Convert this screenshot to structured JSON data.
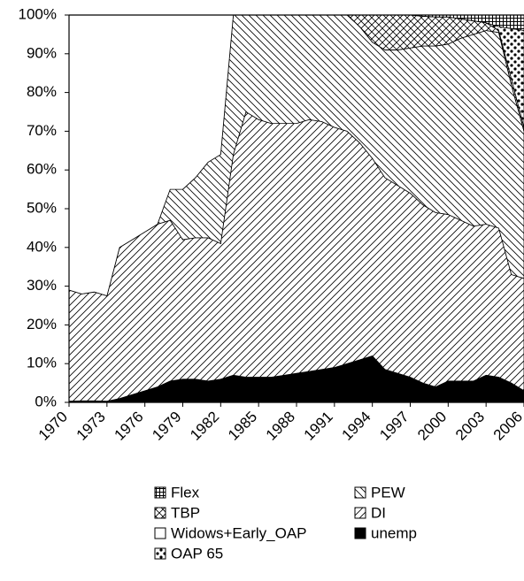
{
  "chart_data": {
    "type": "stacked_area",
    "x": [
      1970,
      1971,
      1972,
      1973,
      1974,
      1975,
      1976,
      1977,
      1978,
      1979,
      1980,
      1981,
      1982,
      1983,
      1984,
      1985,
      1986,
      1987,
      1988,
      1989,
      1990,
      1991,
      1992,
      1993,
      1994,
      1995,
      1996,
      1997,
      1998,
      1999,
      2000,
      2001,
      2002,
      2003,
      2004,
      2005,
      2006
    ],
    "xlim": [
      1970,
      2006
    ],
    "xticks": [
      1970,
      1973,
      1976,
      1979,
      1982,
      1985,
      1988,
      1991,
      1994,
      1997,
      2000,
      2003,
      2006
    ],
    "ylim": [
      0,
      100
    ],
    "yticks": [
      {
        "value": 0,
        "label": "0%"
      },
      {
        "value": 10,
        "label": "10%"
      },
      {
        "value": 20,
        "label": "20%"
      },
      {
        "value": 30,
        "label": "30%"
      },
      {
        "value": 40,
        "label": "40%"
      },
      {
        "value": 50,
        "label": "50%"
      },
      {
        "value": 60,
        "label": "60%"
      },
      {
        "value": 70,
        "label": "70%"
      },
      {
        "value": 80,
        "label": "80%"
      },
      {
        "value": 90,
        "label": "90%"
      },
      {
        "value": 100,
        "label": "100%"
      }
    ],
    "series": [
      {
        "name": "unemp",
        "color": "#000000",
        "hatch": "solid",
        "values": [
          0.3,
          0.4,
          0.4,
          0.3,
          1,
          2,
          3,
          4,
          5.5,
          6,
          6,
          5.5,
          6,
          7,
          6.5,
          6.5,
          6.5,
          7,
          7.5,
          8,
          8.5,
          9,
          10,
          11,
          12,
          8.5,
          7.5,
          6.5,
          5,
          4,
          5.5,
          5.5,
          5.5,
          7,
          6.5,
          5,
          3
        ]
      },
      {
        "name": "DI",
        "color": "#000000",
        "hatch": "slash",
        "values": [
          28.7,
          27.6,
          28.1,
          27.2,
          39,
          40,
          41,
          42,
          41.5,
          36,
          36.5,
          37,
          35,
          57,
          68.5,
          66.5,
          65.5,
          65,
          64.5,
          65,
          64,
          62,
          60,
          56,
          51,
          49.5,
          48.5,
          47.5,
          46,
          45,
          43,
          41.5,
          40,
          39,
          38.5,
          28,
          29
        ]
      },
      {
        "name": "PEW",
        "color": "#000000",
        "hatch": "backslash",
        "values": [
          0,
          0,
          0,
          0,
          0,
          0,
          0,
          0,
          8,
          13,
          15.5,
          19.5,
          23,
          36,
          25,
          27,
          28,
          28,
          28,
          27,
          27.5,
          29,
          30,
          30,
          30,
          33,
          35,
          37.5,
          41,
          43,
          44,
          47,
          49.5,
          50,
          50.5,
          49,
          38
        ]
      },
      {
        "name": "Widows+Early_OAP",
        "color": "#ffffff",
        "hatch": "solid",
        "values": [
          71,
          72,
          71.5,
          72.5,
          60,
          58,
          56,
          54,
          45,
          45,
          42,
          38,
          36,
          0,
          0,
          0,
          0,
          0,
          0,
          0,
          0,
          0,
          0,
          0,
          0,
          0,
          0,
          0,
          0,
          0,
          0,
          0,
          0,
          0,
          0,
          0,
          0
        ]
      },
      {
        "name": "TBP",
        "color": "#000000",
        "hatch": "cross",
        "values": [
          0,
          0,
          0,
          0,
          0,
          0,
          0,
          0,
          0,
          0,
          0,
          0,
          0,
          0,
          0,
          0,
          0,
          0,
          0,
          0,
          0,
          0,
          0,
          3,
          7,
          9,
          9,
          8.5,
          7.7,
          7.5,
          7,
          5,
          3.5,
          2,
          0.5,
          1.5,
          1
        ]
      },
      {
        "name": "OAP  65",
        "color": "#000000",
        "hatch": "dots",
        "values": [
          0,
          0,
          0,
          0,
          0,
          0,
          0,
          0,
          0,
          0,
          0,
          0,
          0,
          0,
          0,
          0,
          0,
          0,
          0,
          0,
          0,
          0,
          0,
          0,
          0,
          0,
          0,
          0,
          0,
          0,
          0,
          0,
          0,
          0,
          1,
          13,
          25
        ]
      },
      {
        "name": "Flex",
        "color": "#000000",
        "hatch": "grid",
        "values": [
          0,
          0,
          0,
          0,
          0,
          0,
          0,
          0,
          0,
          0,
          0,
          0,
          0,
          0,
          0,
          0,
          0,
          0,
          0,
          0,
          0,
          0,
          0,
          0,
          0,
          0,
          0,
          0,
          0.3,
          0.5,
          0.5,
          1,
          1.5,
          2,
          3,
          3.5,
          4
        ]
      }
    ],
    "legend_order": [
      6,
      2,
      4,
      1,
      3,
      0,
      5
    ]
  }
}
